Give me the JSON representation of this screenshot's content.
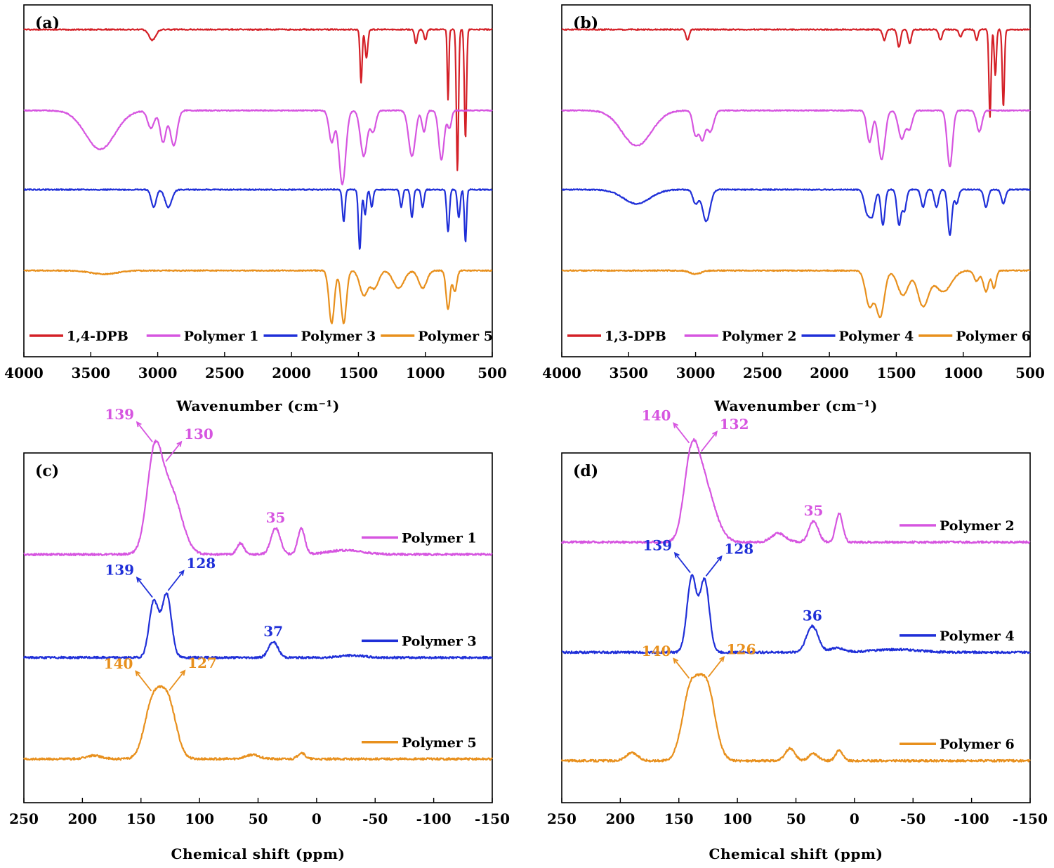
{
  "chart_data": [
    {
      "panel": "(a)",
      "type": "line",
      "xlabel": "Wavenumber (cm⁻¹)",
      "xlim": [
        4000,
        500
      ],
      "xticks": [
        4000,
        3500,
        3000,
        2500,
        2000,
        1500,
        1000,
        500
      ],
      "legend_position": "bottom",
      "series": [
        {
          "name": "1,4-DPB",
          "color": "#d42027",
          "baseline": 0.93,
          "features": [
            [
              3040,
              0.03,
              25
            ],
            [
              1480,
              0.15,
              8
            ],
            [
              1440,
              0.08,
              10
            ],
            [
              1070,
              0.04,
              10
            ],
            [
              1000,
              0.03,
              10
            ],
            [
              830,
              0.2,
              6
            ],
            [
              760,
              0.4,
              8
            ],
            [
              700,
              0.31,
              8
            ]
          ]
        },
        {
          "name": "Polymer 1",
          "color": "#d655e0",
          "baseline": 0.7,
          "features": [
            [
              3430,
              0.11,
              110
            ],
            [
              3050,
              0.05,
              25
            ],
            [
              2960,
              0.09,
              22
            ],
            [
              2880,
              0.1,
              25
            ],
            [
              1700,
              0.09,
              20
            ],
            [
              1620,
              0.21,
              25
            ],
            [
              1460,
              0.13,
              25
            ],
            [
              1390,
              0.06,
              20
            ],
            [
              1100,
              0.13,
              25
            ],
            [
              1010,
              0.06,
              15
            ],
            [
              880,
              0.14,
              20
            ],
            [
              820,
              0.05,
              15
            ]
          ]
        },
        {
          "name": "Polymer 3",
          "color": "#1f2fd8",
          "baseline": 0.475,
          "features": [
            [
              3030,
              0.05,
              18
            ],
            [
              2920,
              0.05,
              25
            ],
            [
              1610,
              0.09,
              10
            ],
            [
              1490,
              0.17,
              10
            ],
            [
              1450,
              0.07,
              10
            ],
            [
              1400,
              0.05,
              10
            ],
            [
              1180,
              0.05,
              10
            ],
            [
              1100,
              0.08,
              10
            ],
            [
              1020,
              0.05,
              10
            ],
            [
              830,
              0.12,
              10
            ],
            [
              750,
              0.08,
              10
            ],
            [
              700,
              0.15,
              8
            ]
          ]
        },
        {
          "name": "Polymer 5",
          "color": "#e8901d",
          "baseline": 0.245,
          "features": [
            [
              3400,
              0.01,
              100
            ],
            [
              1700,
              0.15,
              20
            ],
            [
              1610,
              0.15,
              20
            ],
            [
              1460,
              0.07,
              30
            ],
            [
              1380,
              0.05,
              30
            ],
            [
              1200,
              0.05,
              40
            ],
            [
              1020,
              0.05,
              30
            ],
            [
              830,
              0.11,
              15
            ],
            [
              780,
              0.06,
              15
            ]
          ]
        }
      ]
    },
    {
      "panel": "(b)",
      "type": "line",
      "xlabel": "Wavenumber (cm⁻¹)",
      "xlim": [
        4000,
        500
      ],
      "xticks": [
        4000,
        3500,
        3000,
        2500,
        2000,
        1500,
        1000,
        500
      ],
      "legend_position": "bottom",
      "series": [
        {
          "name": "1,3-DPB",
          "color": "#d42027",
          "baseline": 0.93,
          "features": [
            [
              3060,
              0.03,
              12
            ],
            [
              1590,
              0.03,
              12
            ],
            [
              1480,
              0.05,
              12
            ],
            [
              1400,
              0.04,
              12
            ],
            [
              1170,
              0.03,
              12
            ],
            [
              1020,
              0.02,
              12
            ],
            [
              900,
              0.03,
              10
            ],
            [
              800,
              0.25,
              8
            ],
            [
              760,
              0.13,
              8
            ],
            [
              700,
              0.22,
              8
            ]
          ]
        },
        {
          "name": "Polymer 2",
          "color": "#d655e0",
          "baseline": 0.7,
          "features": [
            [
              3440,
              0.1,
              110
            ],
            [
              3000,
              0.07,
              20
            ],
            [
              2950,
              0.08,
              20
            ],
            [
              2890,
              0.06,
              25
            ],
            [
              1700,
              0.09,
              20
            ],
            [
              1610,
              0.14,
              25
            ],
            [
              1460,
              0.08,
              25
            ],
            [
              1400,
              0.05,
              20
            ],
            [
              1100,
              0.16,
              20
            ],
            [
              880,
              0.06,
              20
            ]
          ]
        },
        {
          "name": "Polymer 4",
          "color": "#1f2fd8",
          "baseline": 0.475,
          "features": [
            [
              3440,
              0.04,
              100
            ],
            [
              3000,
              0.04,
              20
            ],
            [
              2920,
              0.09,
              28
            ],
            [
              1720,
              0.06,
              20
            ],
            [
              1680,
              0.07,
              20
            ],
            [
              1600,
              0.1,
              15
            ],
            [
              1480,
              0.1,
              15
            ],
            [
              1440,
              0.06,
              15
            ],
            [
              1300,
              0.05,
              15
            ],
            [
              1200,
              0.05,
              15
            ],
            [
              1100,
              0.13,
              15
            ],
            [
              1050,
              0.04,
              15
            ],
            [
              830,
              0.05,
              15
            ],
            [
              700,
              0.04,
              15
            ]
          ]
        },
        {
          "name": "Polymer 6",
          "color": "#e8901d",
          "baseline": 0.245,
          "features": [
            [
              3000,
              0.01,
              40
            ],
            [
              1700,
              0.1,
              30
            ],
            [
              1620,
              0.13,
              30
            ],
            [
              1450,
              0.07,
              40
            ],
            [
              1300,
              0.1,
              40
            ],
            [
              1150,
              0.06,
              60
            ],
            [
              900,
              0.03,
              20
            ],
            [
              830,
              0.06,
              20
            ],
            [
              770,
              0.05,
              15
            ]
          ]
        }
      ]
    },
    {
      "panel": "(c)",
      "type": "line",
      "xlabel": "Chemical shift (ppm)",
      "xlim": [
        250,
        -150
      ],
      "xticks": [
        250,
        200,
        150,
        100,
        50,
        0,
        -50,
        -100,
        -150
      ],
      "legend_position": "right",
      "series": [
        {
          "name": "Polymer 1",
          "color": "#d655e0",
          "baseline": 0.71,
          "features": [
            [
              139,
              0.2,
              6
            ],
            [
              130,
              0.165,
              10
            ],
            [
              120,
              0.06,
              8
            ],
            [
              65,
              0.032,
              3
            ],
            [
              35,
              0.075,
              4
            ],
            [
              13,
              0.073,
              3
            ],
            [
              -25,
              0.012,
              15
            ]
          ],
          "annotations": [
            {
              "text": "139",
              "x": 139,
              "side": "left"
            },
            {
              "text": "130",
              "x": 130,
              "side": "right"
            },
            {
              "text": "35",
              "x": 35
            }
          ]
        },
        {
          "name": "Polymer 3",
          "color": "#1f2fd8",
          "baseline": 0.415,
          "features": [
            [
              139,
              0.16,
              4
            ],
            [
              128,
              0.18,
              4
            ],
            [
              37,
              0.045,
              4
            ],
            [
              -30,
              0.006,
              10
            ]
          ],
          "annotations": [
            {
              "text": "139",
              "x": 139,
              "side": "left"
            },
            {
              "text": "128",
              "x": 128,
              "side": "right"
            },
            {
              "text": "37",
              "x": 37
            }
          ]
        },
        {
          "name": "Polymer 5",
          "color": "#e8901d",
          "baseline": 0.125,
          "features": [
            [
              140,
              0.158,
              7
            ],
            [
              127,
              0.16,
              7
            ],
            [
              190,
              0.01,
              6
            ],
            [
              55,
              0.012,
              6
            ],
            [
              13,
              0.018,
              3
            ]
          ],
          "annotations": [
            {
              "text": "140",
              "x": 140,
              "side": "left"
            },
            {
              "text": "127",
              "x": 127,
              "side": "right"
            }
          ]
        }
      ]
    },
    {
      "panel": "(d)",
      "type": "line",
      "xlabel": "Chemical shift (ppm)",
      "xlim": [
        250,
        -150
      ],
      "xticks": [
        250,
        200,
        150,
        100,
        50,
        0,
        -50,
        -100,
        -150
      ],
      "legend_position": "right",
      "series": [
        {
          "name": "Polymer 2",
          "color": "#d655e0",
          "baseline": 0.745,
          "features": [
            [
              140,
              0.18,
              6
            ],
            [
              132,
              0.15,
              8
            ],
            [
              122,
              0.06,
              8
            ],
            [
              65,
              0.025,
              6
            ],
            [
              35,
              0.06,
              4
            ],
            [
              13,
              0.082,
              3
            ]
          ],
          "annotations": [
            {
              "text": "140",
              "x": 140,
              "side": "left"
            },
            {
              "text": "132",
              "x": 132,
              "side": "right"
            },
            {
              "text": "35",
              "x": 35
            }
          ]
        },
        {
          "name": "Polymer 4",
          "color": "#1f2fd8",
          "baseline": 0.43,
          "features": [
            [
              139,
              0.215,
              4
            ],
            [
              128,
              0.205,
              4
            ],
            [
              36,
              0.075,
              5
            ],
            [
              15,
              0.012,
              6
            ],
            [
              -35,
              0.008,
              20
            ]
          ],
          "annotations": [
            {
              "text": "139",
              "x": 139,
              "side": "left"
            },
            {
              "text": "128",
              "x": 128,
              "side": "right"
            },
            {
              "text": "36",
              "x": 36
            }
          ]
        },
        {
          "name": "Polymer 6",
          "color": "#e8901d",
          "baseline": 0.12,
          "features": [
            [
              140,
              0.2,
              7
            ],
            [
              126,
              0.205,
              7
            ],
            [
              190,
              0.022,
              5
            ],
            [
              55,
              0.035,
              4
            ],
            [
              35,
              0.02,
              4
            ],
            [
              13,
              0.03,
              3
            ]
          ],
          "annotations": [
            {
              "text": "140",
              "x": 140,
              "side": "left"
            },
            {
              "text": "126",
              "x": 126,
              "side": "right"
            }
          ]
        }
      ]
    }
  ]
}
